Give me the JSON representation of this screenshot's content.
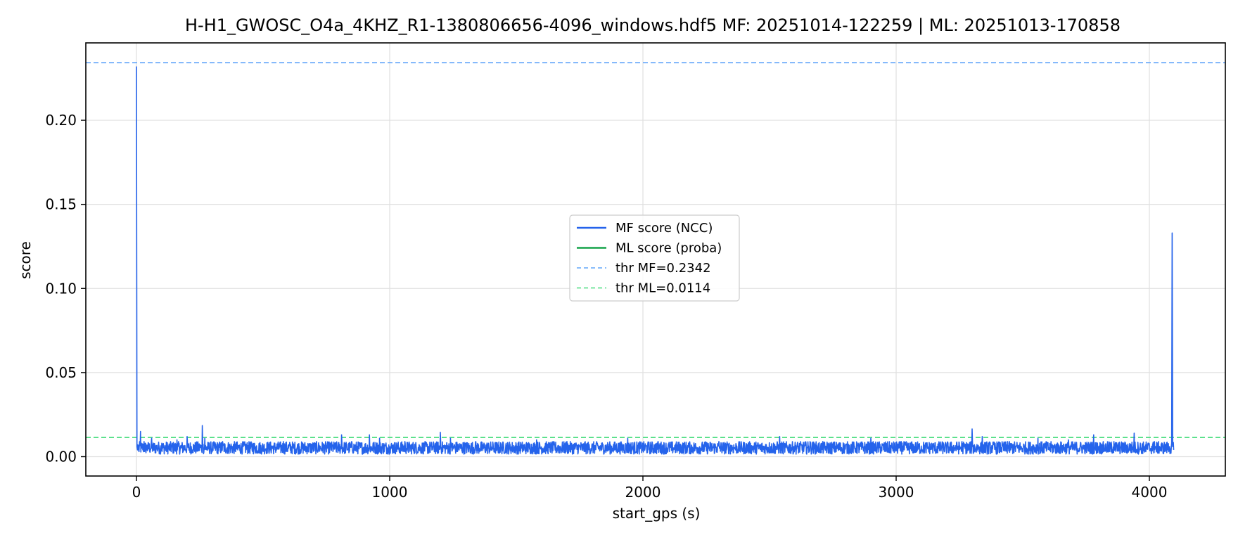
{
  "chart_data": {
    "type": "line",
    "title": "H-H1_GWOSC_O4a_4KHZ_R1-1380806656-4096_windows.hdf5  MF: 20251014-122259 | ML: 20251013-170858",
    "xlabel": "start_gps (s)",
    "ylabel": "score",
    "xlim": [
      -200,
      4300
    ],
    "ylim": [
      -0.0115,
      0.246
    ],
    "xticks": [
      0,
      1000,
      2000,
      3000,
      4000
    ],
    "xtick_labels": [
      "0",
      "1000",
      "2000",
      "3000",
      "4000"
    ],
    "yticks": [
      0.0,
      0.05,
      0.1,
      0.15,
      0.2
    ],
    "ytick_labels": [
      "0.00",
      "0.05",
      "0.10",
      "0.15",
      "0.20"
    ],
    "grid": true,
    "legend_placement": "center",
    "series": [
      {
        "name": "MF score (NCC)",
        "color": "#2563eb",
        "style": "solid",
        "x": [
          0,
          2,
          4,
          6,
          10,
          16,
          20,
          30,
          40,
          60,
          80,
          100,
          130,
          160,
          190,
          200,
          220,
          250,
          260,
          262,
          270,
          300,
          340,
          400,
          460,
          520,
          580,
          640,
          700,
          760,
          810,
          812,
          850,
          900,
          920,
          960,
          1000,
          1060,
          1120,
          1180,
          1200,
          1202,
          1240,
          1280,
          1340,
          1400,
          1460,
          1520,
          1580,
          1640,
          1700,
          1760,
          1820,
          1880,
          1940,
          2000,
          2060,
          2120,
          2180,
          2240,
          2300,
          2360,
          2420,
          2480,
          2540,
          2600,
          2660,
          2720,
          2780,
          2840,
          2900,
          2960,
          3020,
          3080,
          3140,
          3200,
          3260,
          3300,
          3302,
          3340,
          3380,
          3440,
          3500,
          3560,
          3620,
          3680,
          3740,
          3780,
          3800,
          3860,
          3920,
          3940,
          3980,
          4020,
          4060,
          4080,
          4088,
          4090,
          4092,
          4096
        ],
        "y": [
          0.232,
          0.006,
          0.004,
          0.007,
          0.003,
          0.015,
          0.005,
          0.009,
          0.004,
          0.011,
          0.005,
          0.008,
          0.004,
          0.01,
          0.005,
          0.012,
          0.004,
          0.007,
          0.0185,
          0.006,
          0.011,
          0.005,
          0.009,
          0.004,
          0.008,
          0.005,
          0.009,
          0.004,
          0.008,
          0.005,
          0.013,
          0.006,
          0.009,
          0.005,
          0.013,
          0.011,
          0.006,
          0.009,
          0.005,
          0.008,
          0.0145,
          0.006,
          0.011,
          0.005,
          0.009,
          0.004,
          0.008,
          0.005,
          0.01,
          0.005,
          0.009,
          0.004,
          0.008,
          0.005,
          0.011,
          0.006,
          0.009,
          0.005,
          0.008,
          0.004,
          0.009,
          0.005,
          0.008,
          0.005,
          0.012,
          0.006,
          0.009,
          0.004,
          0.008,
          0.005,
          0.011,
          0.005,
          0.009,
          0.004,
          0.008,
          0.005,
          0.009,
          0.0165,
          0.006,
          0.012,
          0.005,
          0.009,
          0.004,
          0.011,
          0.005,
          0.01,
          0.005,
          0.013,
          0.006,
          0.009,
          0.004,
          0.014,
          0.006,
          0.009,
          0.004,
          0.006,
          0.008,
          0.133,
          0.006,
          0.004
        ]
      },
      {
        "name": "ML score (proba)",
        "color": "#16a34a",
        "style": "solid",
        "x": [],
        "y": []
      }
    ],
    "thresholds": [
      {
        "name": "thr MF=0.2342",
        "value": 0.2342,
        "color": "#60a5fa",
        "style": "dashed"
      },
      {
        "name": "thr ML=0.0114",
        "value": 0.0114,
        "color": "#4ade80",
        "style": "dashed"
      }
    ]
  }
}
